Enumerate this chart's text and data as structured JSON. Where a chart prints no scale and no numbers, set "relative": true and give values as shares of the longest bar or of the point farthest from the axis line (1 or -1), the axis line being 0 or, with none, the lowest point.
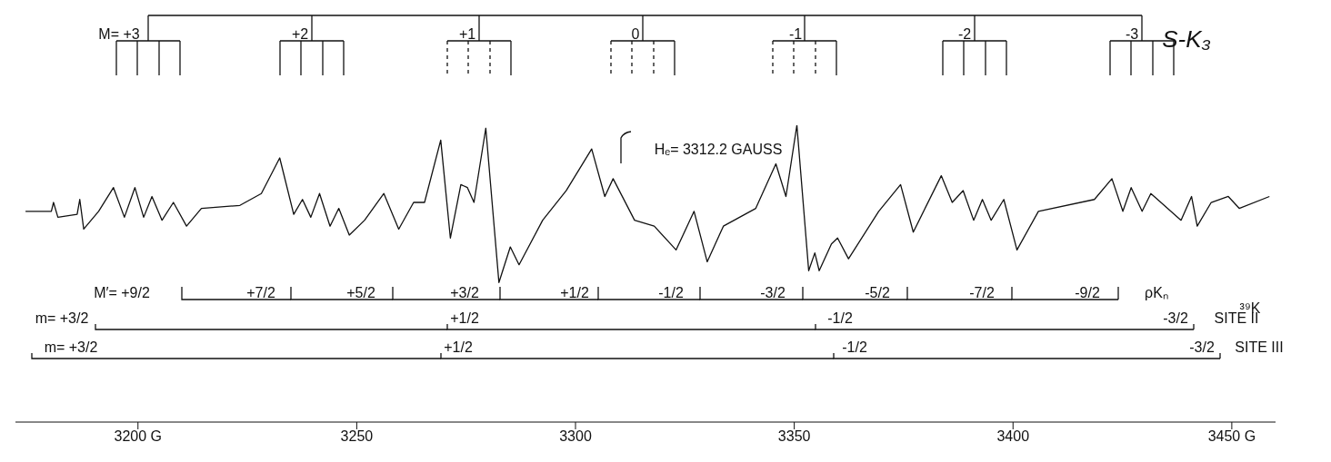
{
  "chart_data": {
    "type": "line",
    "relative": true,
    "color": "#111111",
    "x": [
      3174.3,
      3180.2,
      3180.7,
      3181.7,
      3186.1,
      3186.7,
      3187.6,
      3191.0,
      3194.4,
      3196.9,
      3199.3,
      3201.3,
      3203.2,
      3205.5,
      3208.1,
      3211.1,
      3214.5,
      3223.3,
      3228.2,
      3232.4,
      3235.6,
      3237.6,
      3239.5,
      3241.5,
      3243.9,
      3245.9,
      3248.3,
      3251.8,
      3256.2,
      3259.6,
      3263.0,
      3265.5,
      3269.2,
      3271.4,
      3273.8,
      3275.3,
      3276.8,
      3279.5,
      3282.5,
      3285.1,
      3287.1,
      3292.5,
      3297.9,
      3303.7,
      3306.7,
      3308.6,
      3313.5,
      3318.0,
      3323.0,
      3327.1,
      3330.1,
      3333.8,
      3341.2,
      3345.8,
      3348.1,
      3350.6,
      3353.3,
      3354.7,
      3355.7,
      3358.5,
      3359.9,
      3362.4,
      3369.3,
      3374.3,
      3377.2,
      3383.6,
      3386.1,
      3388.6,
      3391.0,
      3393.0,
      3395.0,
      3397.9,
      3400.9,
      3405.8,
      3418.6,
      3422.6,
      3425.1,
      3427.0,
      3429.5,
      3431.5,
      3438.4,
      3440.8,
      3442.1,
      3445.3,
      3449.2,
      3451.7,
      3458.6
    ],
    "values": [
      0.71,
      0.71,
      0.74,
      0.69,
      0.7,
      0.75,
      0.65,
      0.71,
      0.79,
      0.69,
      0.79,
      0.69,
      0.76,
      0.68,
      0.74,
      0.66,
      0.72,
      0.73,
      0.77,
      0.89,
      0.7,
      0.75,
      0.69,
      0.77,
      0.66,
      0.72,
      0.63,
      0.68,
      0.77,
      0.65,
      0.74,
      0.74,
      0.95,
      0.62,
      0.8,
      0.79,
      0.74,
      0.99,
      0.47,
      0.59,
      0.53,
      0.68,
      0.78,
      0.92,
      0.76,
      0.82,
      0.68,
      0.66,
      0.58,
      0.71,
      0.54,
      0.66,
      0.72,
      0.87,
      0.76,
      1.0,
      0.51,
      0.57,
      0.51,
      0.6,
      0.62,
      0.55,
      0.71,
      0.8,
      0.64,
      0.83,
      0.74,
      0.78,
      0.68,
      0.75,
      0.68,
      0.75,
      0.58,
      0.71,
      0.75,
      0.82,
      0.71,
      0.79,
      0.71,
      0.77,
      0.68,
      0.76,
      0.66,
      0.74,
      0.76,
      0.72,
      0.76
    ],
    "xlim": [
      3172,
      3460
    ],
    "xticks": [
      {
        "value": 3200,
        "label": "3200 G"
      },
      3250,
      3300,
      3350,
      3400,
      {
        "value": 3450,
        "label": "3450 G"
      }
    ],
    "annotations": [
      "M= +3",
      "+2",
      "+1",
      "0",
      "-1",
      "-2",
      "-3",
      "S-K₃",
      "Hₑ= 3312.2 GAUSS",
      "M′= +9/2",
      "+7/2",
      "+5/2",
      "+3/2",
      "+1/2",
      "-1/2",
      "-3/2",
      "-5/2",
      "-7/2",
      "-9/2",
      "ρKₙ",
      "³⁹K",
      "m= +3/2",
      "+1/2",
      "-1/2",
      "-3/2",
      "SITE II",
      "m= +3/2",
      "+1/2",
      "-1/2",
      "-3/2",
      "SITE III"
    ]
  }
}
